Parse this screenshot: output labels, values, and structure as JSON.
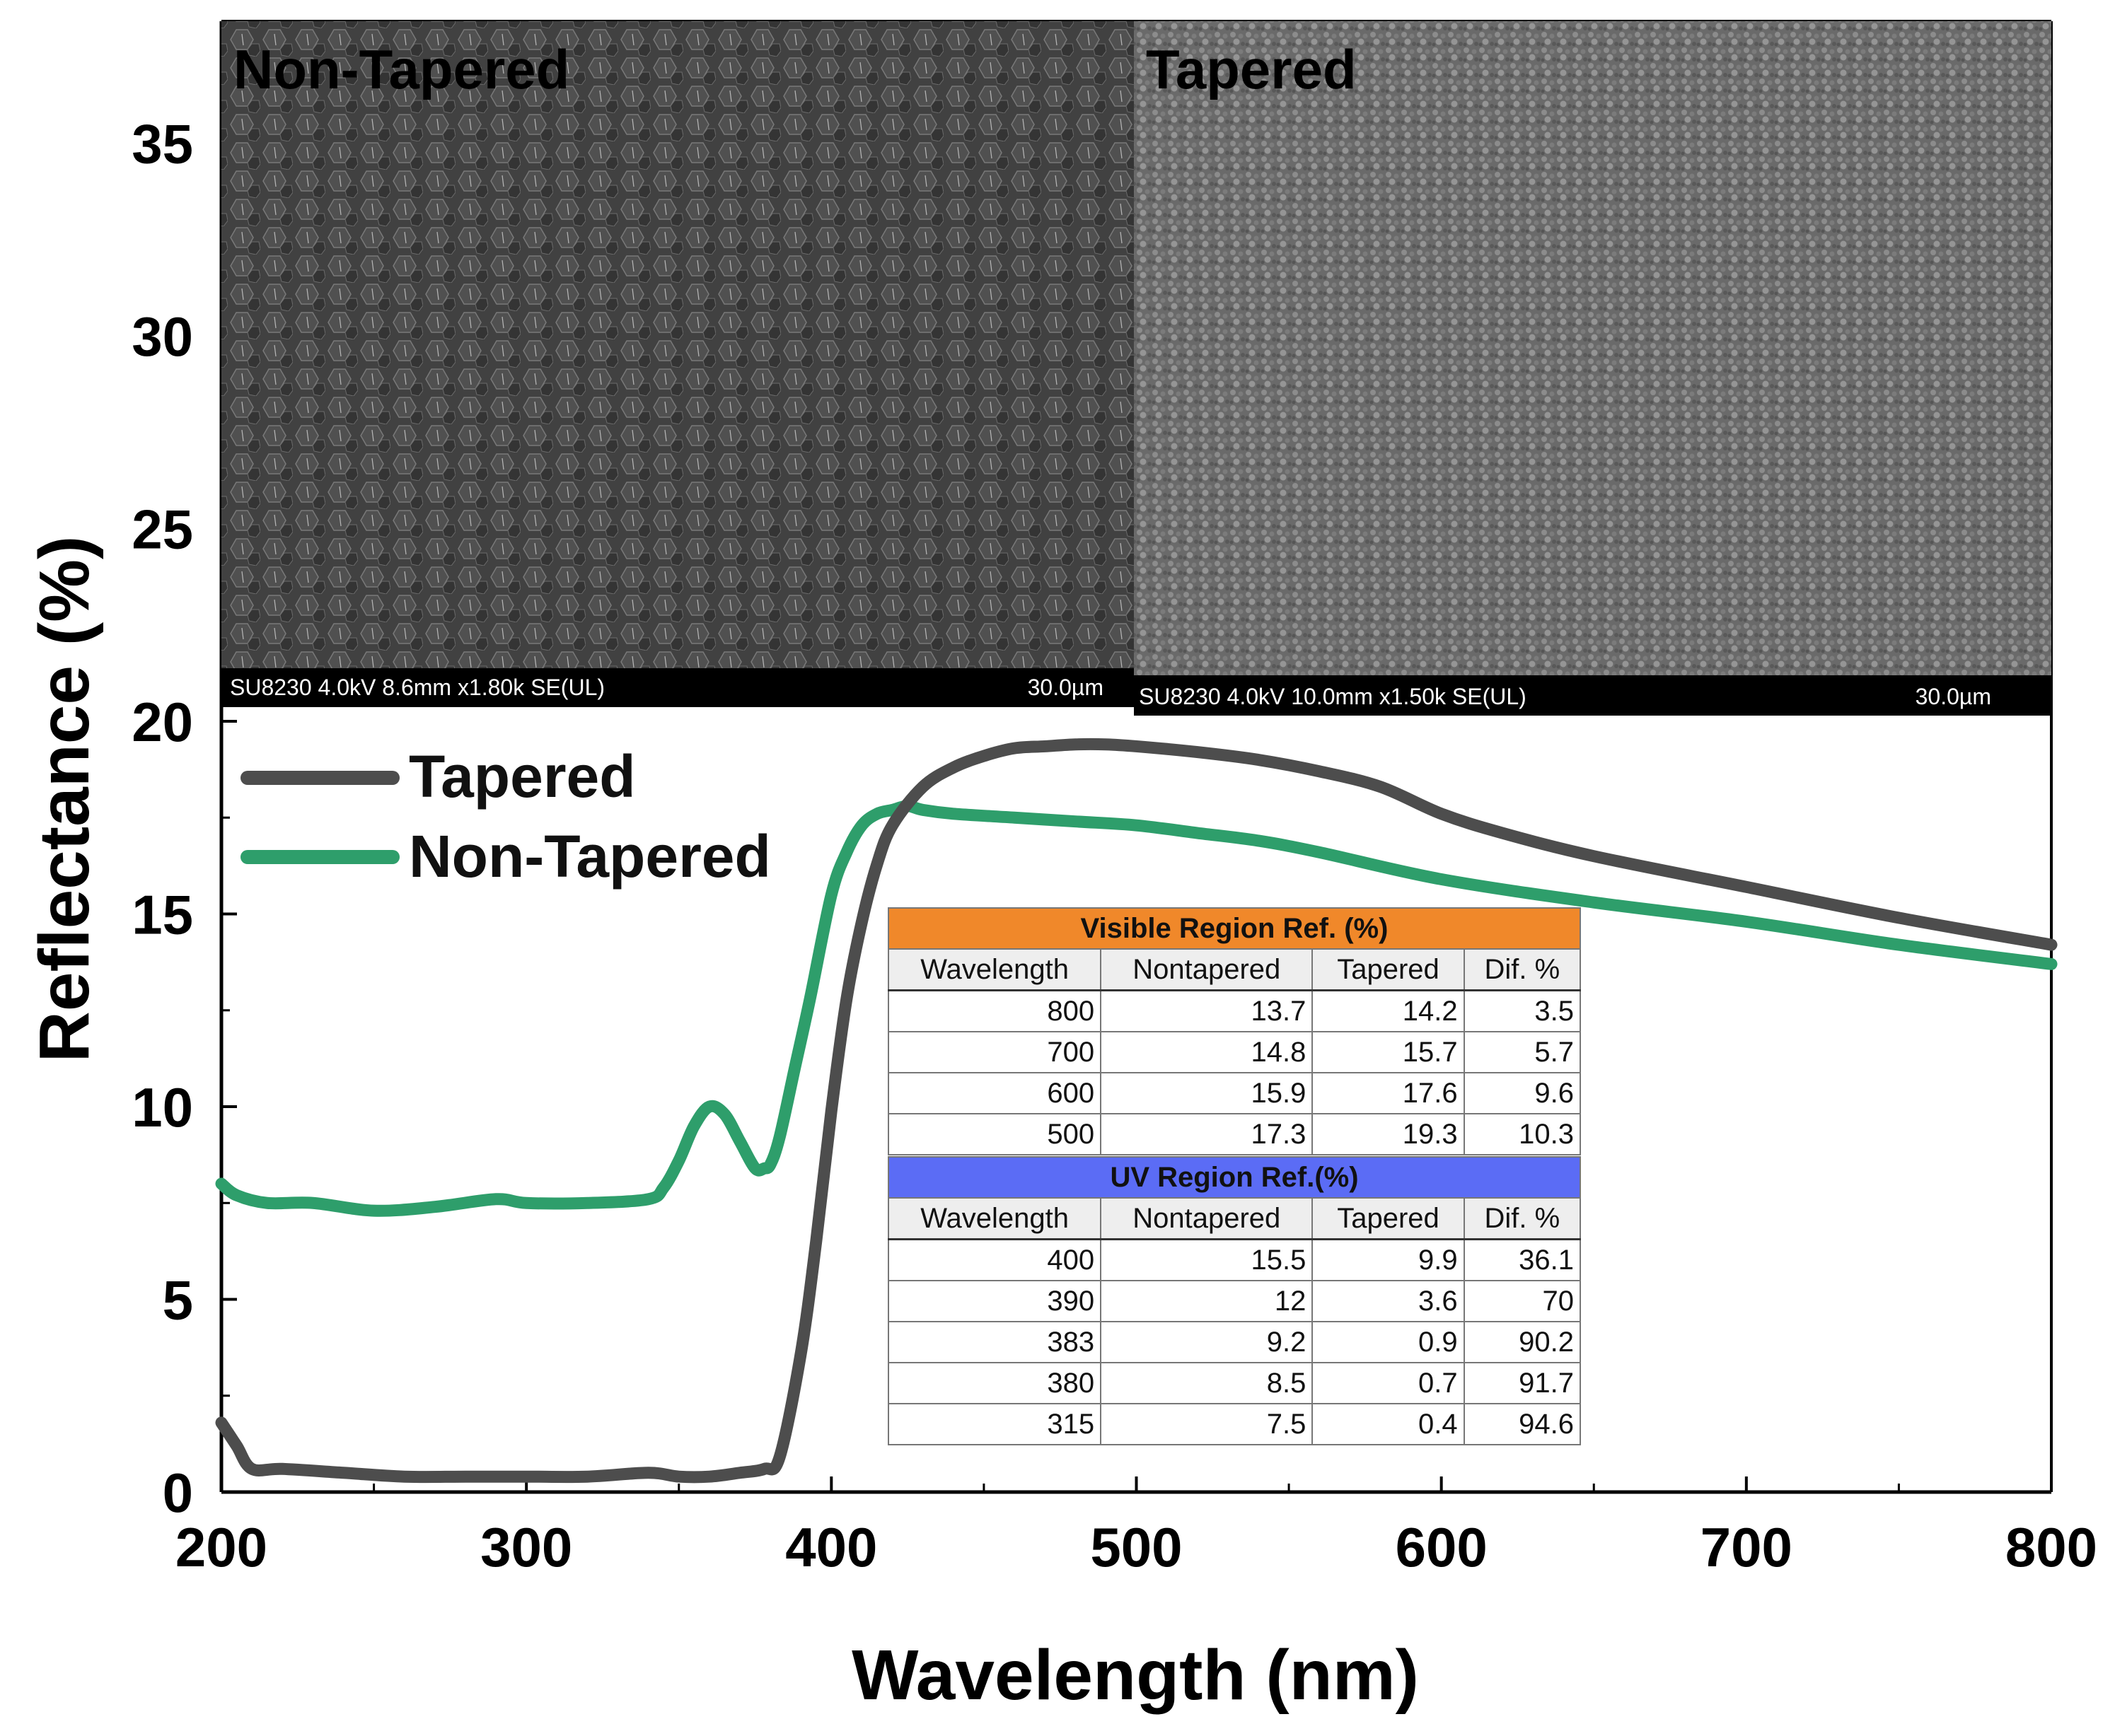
{
  "chart_data": {
    "type": "line",
    "xlabel": "Wavelength (nm)",
    "ylabel": "Reflectance (%)",
    "xlim": [
      200,
      800
    ],
    "ylim": [
      0,
      37
    ],
    "xticks": [
      200,
      300,
      400,
      500,
      600,
      700,
      800
    ],
    "yticks": [
      0,
      5,
      10,
      15,
      20,
      25,
      30,
      35
    ],
    "legend_position": "top-left",
    "series": [
      {
        "name": "Tapered",
        "color": "#4d4d4d",
        "x": [
          200,
          205,
          210,
          220,
          240,
          260,
          280,
          300,
          320,
          340,
          350,
          360,
          370,
          378,
          383,
          390,
          395,
          400,
          405,
          410,
          415,
          420,
          430,
          440,
          450,
          460,
          470,
          480,
          490,
          500,
          520,
          540,
          560,
          580,
          600,
          620,
          650,
          700,
          750,
          800
        ],
        "y": [
          1.8,
          1.2,
          0.6,
          0.6,
          0.5,
          0.4,
          0.4,
          0.4,
          0.4,
          0.5,
          0.4,
          0.4,
          0.5,
          0.6,
          0.9,
          3.6,
          6.5,
          9.9,
          12.8,
          14.8,
          16.3,
          17.3,
          18.3,
          18.8,
          19.1,
          19.3,
          19.35,
          19.4,
          19.4,
          19.35,
          19.2,
          19.0,
          18.7,
          18.3,
          17.6,
          17.1,
          16.5,
          15.7,
          14.9,
          14.2
        ]
      },
      {
        "name": "Non-Tapered",
        "color": "#2e9e6b",
        "x": [
          200,
          205,
          215,
          230,
          250,
          270,
          290,
          300,
          320,
          340,
          345,
          350,
          355,
          360,
          365,
          370,
          375,
          378,
          380,
          383,
          388,
          393,
          400,
          405,
          410,
          415,
          420,
          425,
          430,
          440,
          460,
          480,
          500,
          520,
          540,
          560,
          600,
          650,
          700,
          750,
          800
        ],
        "y": [
          8.0,
          7.7,
          7.5,
          7.5,
          7.3,
          7.4,
          7.6,
          7.5,
          7.5,
          7.6,
          7.9,
          8.6,
          9.5,
          10.0,
          9.8,
          9.1,
          8.4,
          8.4,
          8.5,
          9.2,
          11.0,
          12.8,
          15.5,
          16.6,
          17.3,
          17.6,
          17.7,
          17.8,
          17.7,
          17.6,
          17.5,
          17.4,
          17.3,
          17.1,
          16.9,
          16.6,
          15.9,
          15.3,
          14.8,
          14.2,
          13.7
        ]
      }
    ]
  },
  "sem_images": {
    "left": {
      "label": "Non-Tapered",
      "info": "SU8230 4.0kV 8.6mm x1.80k SE(UL)",
      "scale": "30.0µm"
    },
    "right": {
      "label": "Tapered",
      "info": "SU8230 4.0kV 10.0mm x1.50k SE(UL)",
      "scale": "30.0µm"
    }
  },
  "tables": {
    "visible": {
      "title": "Visible Region Ref. (%)",
      "title_color": "#f0882a",
      "headers": [
        "Wavelength",
        "Nontapered",
        "Tapered",
        "Dif. %"
      ],
      "rows": [
        [
          "800",
          "13.7",
          "14.2",
          "3.5"
        ],
        [
          "700",
          "14.8",
          "15.7",
          "5.7"
        ],
        [
          "600",
          "15.9",
          "17.6",
          "9.6"
        ],
        [
          "500",
          "17.3",
          "19.3",
          "10.3"
        ]
      ]
    },
    "uv": {
      "title": "UV Region Ref.(%)",
      "title_color": "#5b6cf5",
      "headers": [
        "Wavelength",
        "Nontapered",
        "Tapered",
        "Dif. %"
      ],
      "rows": [
        [
          "400",
          "15.5",
          "9.9",
          "36.1"
        ],
        [
          "390",
          "12",
          "3.6",
          "70"
        ],
        [
          "383",
          "9.2",
          "0.9",
          "90.2"
        ],
        [
          "380",
          "8.5",
          "0.7",
          "91.7"
        ],
        [
          "315",
          "7.5",
          "0.4",
          "94.6"
        ]
      ]
    }
  }
}
